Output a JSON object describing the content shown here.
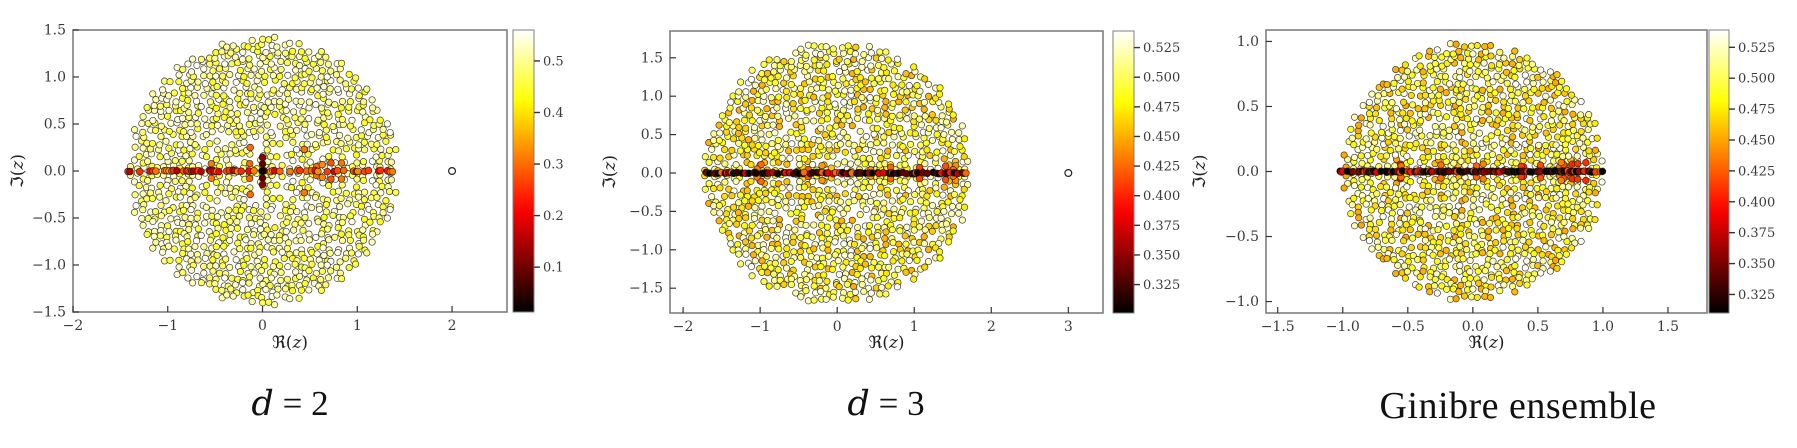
{
  "figure": {
    "background": "#ffffff",
    "style": {
      "frame_color": "#7f7f7f",
      "tick_label_color": "#3a3a3a",
      "marker_edge_color": "#1a1a1a",
      "outlier_stroke": "#222222",
      "colormap": "hot"
    }
  },
  "chart_data": [
    {
      "type": "scatter",
      "caption": "d = 2",
      "caption_math": true,
      "xlabel": "ℜ(z)",
      "ylabel": "ℑ(z)",
      "xlim": [
        -2.0,
        2.58
      ],
      "ylim": [
        -1.5,
        1.5
      ],
      "xticks": [
        -2,
        -1,
        0,
        1,
        2
      ],
      "xtick_labels": [
        "−2",
        "−1",
        "0",
        "1",
        "2"
      ],
      "yticks": [
        -1.5,
        -1.0,
        -0.5,
        0.0,
        0.5,
        1.0,
        1.5
      ],
      "ytick_labels": [
        "−1.5",
        "−1.0",
        "−0.5",
        "0.0",
        "0.5",
        "1.0",
        "1.5"
      ],
      "disk_radius": 1.42,
      "approx_n_points": 1200,
      "disk_value_range": [
        0.43,
        0.555
      ],
      "center_sparse": true,
      "real_axis_line": {
        "extent": 1.42,
        "n": 58,
        "value_range": [
          0.14,
          0.33
        ],
        "skew": "high"
      },
      "near_axis": {
        "n": 6,
        "value_range": [
          0.28,
          0.33
        ]
      },
      "center_cluster": [
        [
          0,
          0,
          0.022
        ],
        [
          0,
          0.075,
          0.09
        ],
        [
          0,
          -0.075,
          0.09
        ],
        [
          0,
          0.145,
          0.125
        ],
        [
          0,
          -0.145,
          0.125
        ],
        [
          -0.13,
          0.25,
          0.3
        ],
        [
          -0.13,
          -0.25,
          0.3
        ],
        [
          0.44,
          0.23,
          0.31
        ],
        [
          0.44,
          -0.23,
          0.31
        ]
      ],
      "outlier": [
        2.0,
        0.0
      ],
      "colormap": "hot",
      "colorbar": {
        "vmin": 0.013,
        "vmax": 0.56,
        "ticks": [
          0.5,
          0.4,
          0.3,
          0.2,
          0.1
        ],
        "tick_labels": [
          "0.5",
          "0.4",
          "0.3",
          "0.2",
          "0.1"
        ]
      },
      "seed": 11
    },
    {
      "type": "scatter",
      "caption": "d = 3",
      "caption_math": true,
      "xlabel": "ℜ(z)",
      "ylabel": "ℑ(z)",
      "xlim": [
        -2.17,
        3.45
      ],
      "ylim": [
        -1.823,
        1.849
      ],
      "xticks": [
        -2,
        -1,
        0,
        1,
        2,
        3
      ],
      "xtick_labels": [
        "−2",
        "−1",
        "0",
        "1",
        "2",
        "3"
      ],
      "yticks": [
        -1.5,
        -1.0,
        -0.5,
        0.0,
        0.5,
        1.0,
        1.5
      ],
      "ytick_labels": [
        "−1.5",
        "−1.0",
        "−0.5",
        "0.0",
        "0.5",
        "1.0",
        "1.5"
      ],
      "disk_radius": 1.732,
      "approx_n_points": 1250,
      "disk_value_range": [
        0.45,
        0.538
      ],
      "center_sparse": false,
      "real_axis_line": {
        "extent": 1.7,
        "n": 92,
        "value_range": [
          0.303,
          0.43
        ],
        "skew": "low"
      },
      "near_axis": {
        "n": 10,
        "value_range": [
          0.405,
          0.445
        ]
      },
      "center_cluster": null,
      "outlier": [
        3.0,
        0.0
      ],
      "colormap": "hot",
      "colorbar": {
        "vmin": 0.301,
        "vmax": 0.539,
        "ticks": [
          0.525,
          0.5,
          0.475,
          0.45,
          0.425,
          0.4,
          0.375,
          0.35,
          0.325
        ],
        "tick_labels": [
          "0.525",
          "0.500",
          "0.475",
          "0.450",
          "0.425",
          "0.400",
          "0.375",
          "0.350",
          "0.325"
        ]
      },
      "seed": 22
    },
    {
      "type": "scatter",
      "caption": "Ginibre ensemble",
      "caption_math": false,
      "xlabel": "ℜ(z)",
      "ylabel": "ℑ(z)",
      "xlim": [
        -1.59,
        1.8
      ],
      "ylim": [
        -1.088,
        1.088
      ],
      "xticks": [
        -1.5,
        -1.0,
        -0.5,
        0.0,
        0.5,
        1.0,
        1.5
      ],
      "xtick_labels": [
        "−1.5",
        "−1.0",
        "−0.5",
        "0.0",
        "0.5",
        "1.0",
        "1.5"
      ],
      "yticks": [
        -1.0,
        -0.5,
        0.0,
        0.5,
        1.0
      ],
      "ytick_labels": [
        "−1.0",
        "−0.5",
        "0.0",
        "0.5",
        "1.0"
      ],
      "disk_radius": 1.0,
      "approx_n_points": 1250,
      "disk_value_range": [
        0.45,
        0.538
      ],
      "center_sparse": false,
      "real_axis_line": {
        "extent": 1.02,
        "n": 108,
        "value_range": [
          0.303,
          0.43
        ],
        "skew": "low"
      },
      "near_axis": {
        "n": 16,
        "value_range": [
          0.405,
          0.445
        ]
      },
      "center_cluster": null,
      "outlier": null,
      "colormap": "hot",
      "colorbar": {
        "vmin": 0.31,
        "vmax": 0.539,
        "ticks": [
          0.525,
          0.5,
          0.475,
          0.45,
          0.425,
          0.4,
          0.375,
          0.35,
          0.325
        ],
        "tick_labels": [
          "0.525",
          "0.500",
          "0.475",
          "0.450",
          "0.425",
          "0.400",
          "0.375",
          "0.350",
          "0.325"
        ]
      },
      "seed": 33
    }
  ]
}
